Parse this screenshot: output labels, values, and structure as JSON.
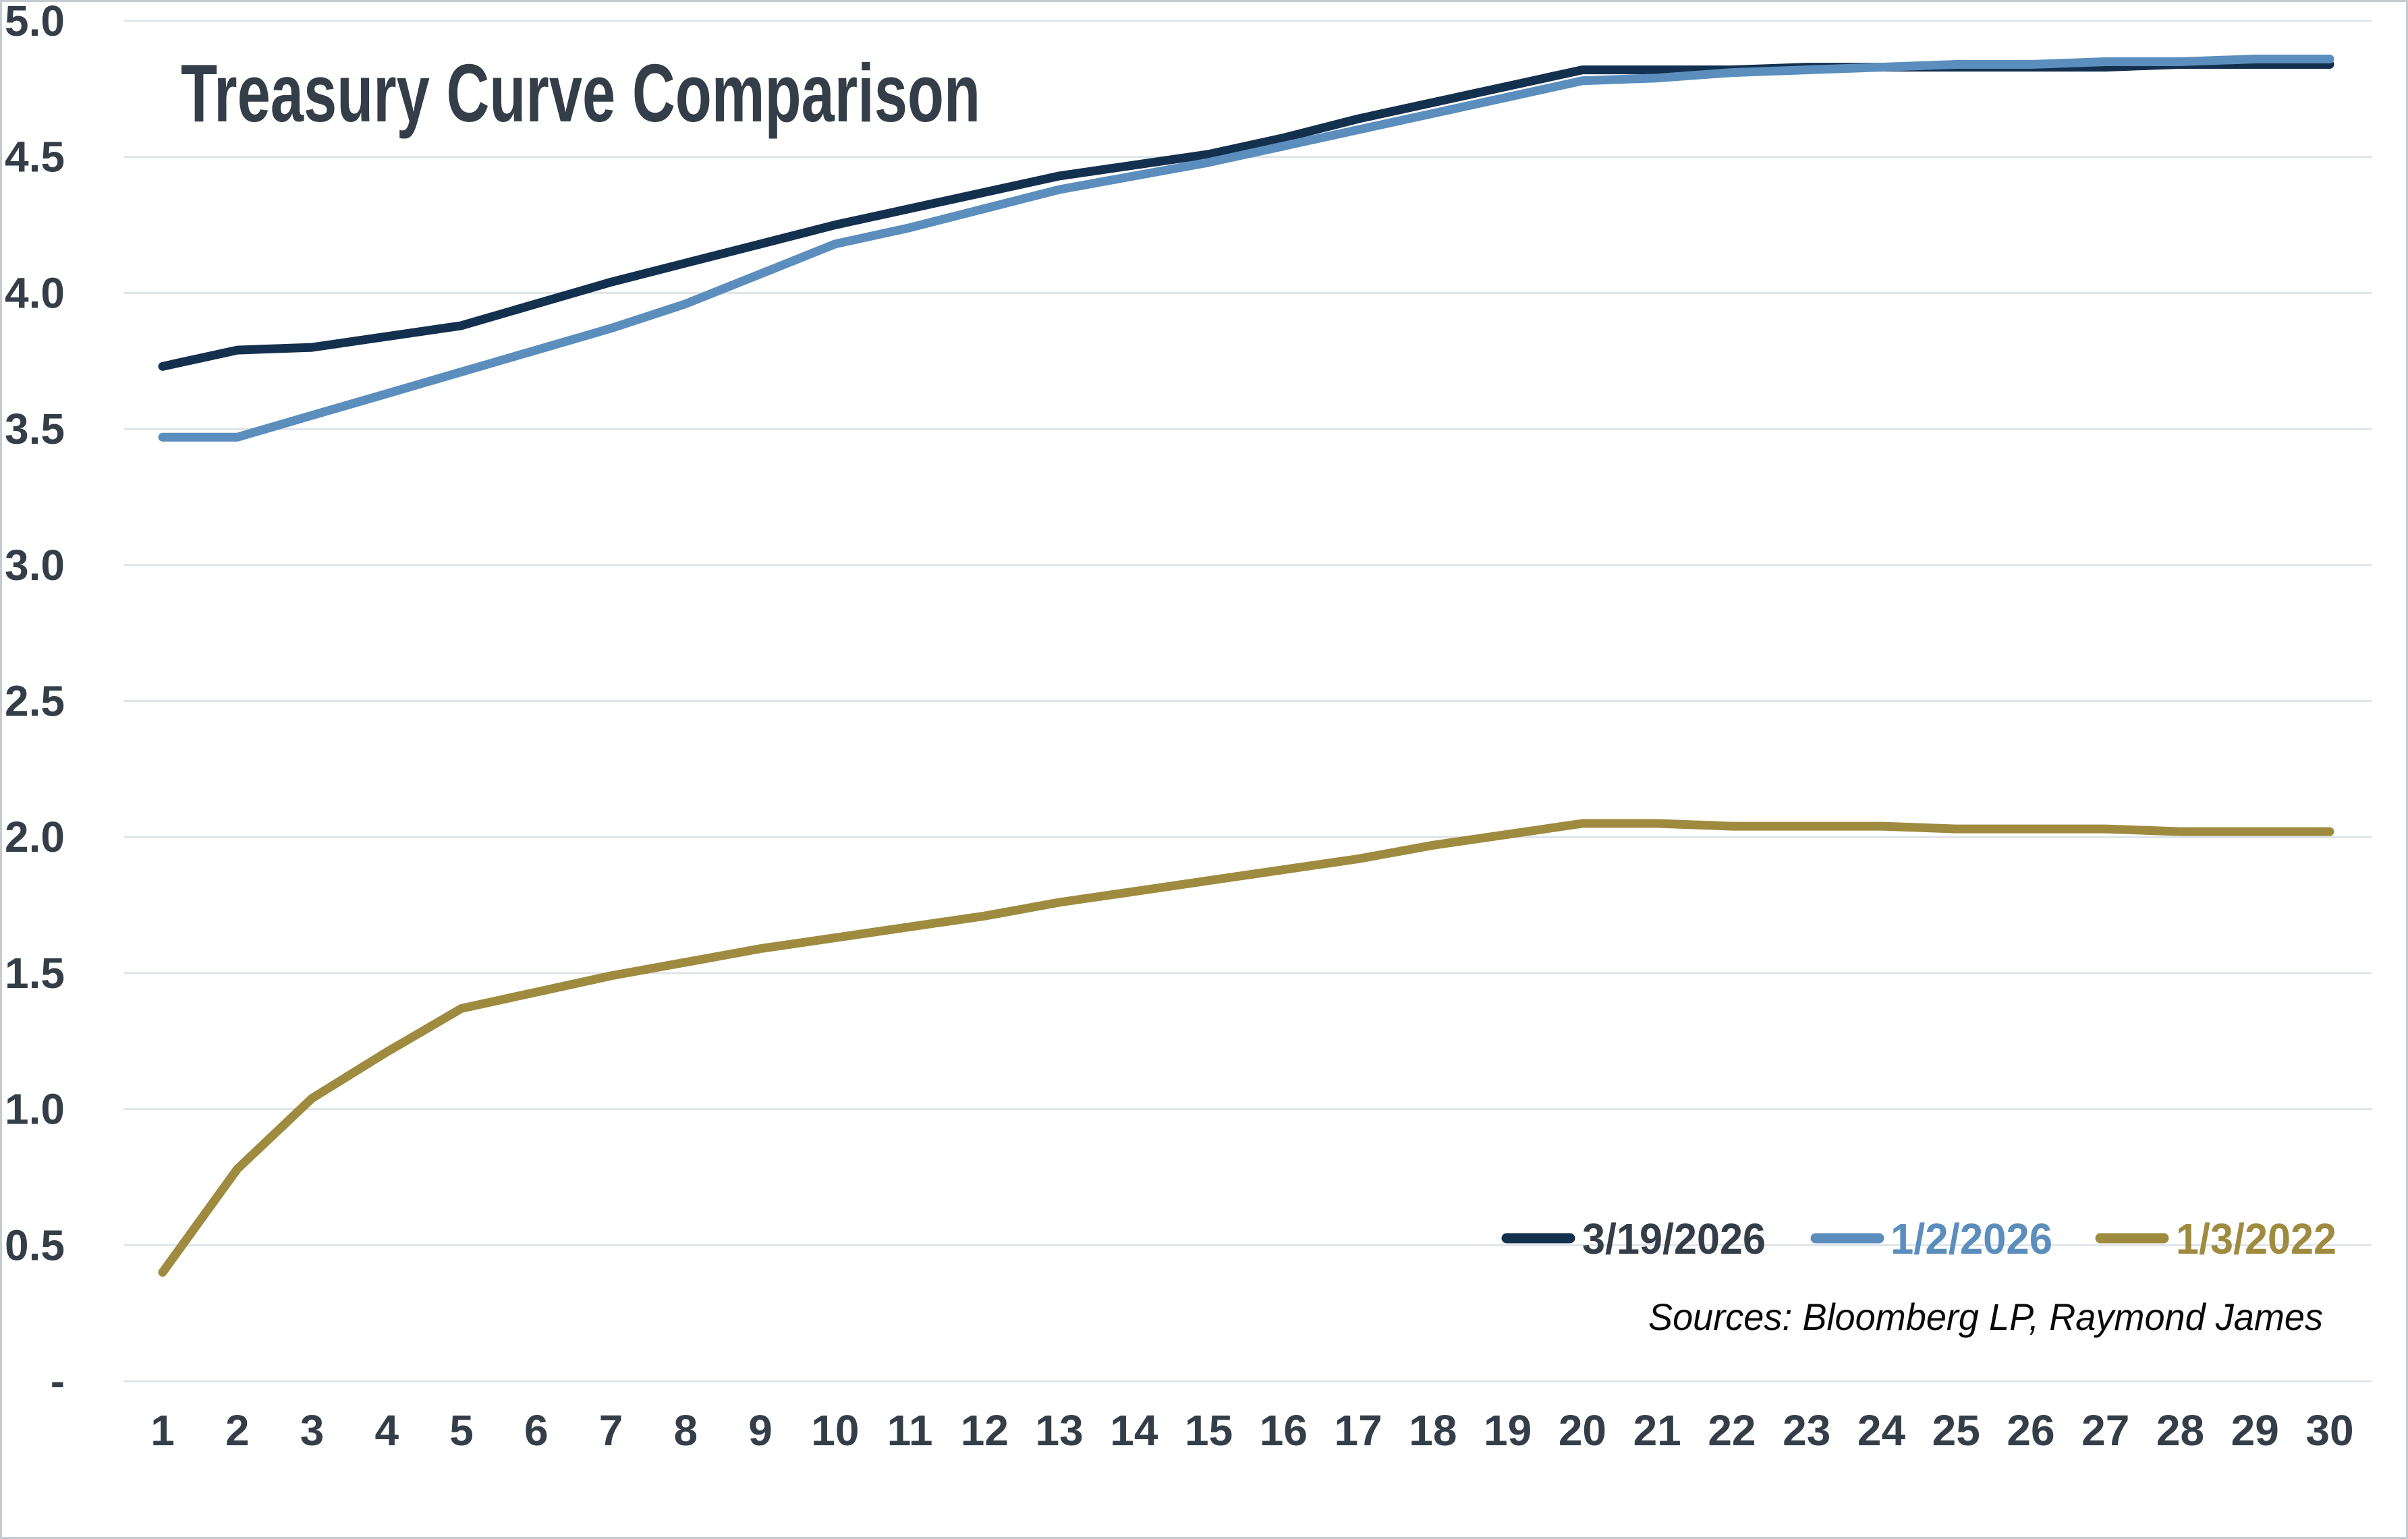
{
  "window": {
    "background": "#ffffff",
    "border_color": "#c6cbd1"
  },
  "chart_data": {
    "type": "line",
    "title": "Treasury Curve Comparison",
    "source_note": "Sources: Bloomberg LP, Raymond James",
    "title_color": "#343e48",
    "axis_text_color": "#343e48",
    "gridline_color": "#dee4e9",
    "source_note_color": "#0a0a0a",
    "grid": true,
    "legend_position": "inside-bottom-right",
    "xlabel": "",
    "ylabel": "",
    "x_categories": [
      1,
      2,
      3,
      4,
      5,
      6,
      7,
      8,
      9,
      10,
      11,
      12,
      13,
      14,
      15,
      16,
      17,
      18,
      19,
      20,
      21,
      22,
      23,
      24,
      25,
      26,
      27,
      28,
      29,
      30
    ],
    "y_axis": {
      "min": 0,
      "max": 5,
      "tick_interval": 0.5,
      "tick_labels_top_to_bottom": [
        "5.0",
        "4.5",
        "4.0",
        "3.5",
        "3.0",
        "2.5",
        "2.0",
        "1.5",
        "1.0",
        "0.5",
        "-"
      ]
    },
    "series": [
      {
        "name": "3/19/2026",
        "color": "#14304f",
        "label_color": "#343e48",
        "values": [
          3.73,
          3.79,
          3.8,
          3.84,
          3.88,
          3.96,
          4.04,
          4.11,
          4.18,
          4.25,
          4.31,
          4.37,
          4.43,
          4.47,
          4.51,
          4.57,
          4.64,
          4.7,
          4.76,
          4.82,
          4.82,
          4.82,
          4.83,
          4.83,
          4.83,
          4.83,
          4.83,
          4.84,
          4.84,
          4.84
        ]
      },
      {
        "name": "1/2/2026",
        "color": "#5b8ebd",
        "label_color": "#5b8ebd",
        "values": [
          3.47,
          3.47,
          3.55,
          3.63,
          3.71,
          3.79,
          3.87,
          3.96,
          4.07,
          4.18,
          4.24,
          4.31,
          4.38,
          4.43,
          4.48,
          4.54,
          4.6,
          4.66,
          4.72,
          4.78,
          4.79,
          4.81,
          4.82,
          4.83,
          4.84,
          4.84,
          4.85,
          4.85,
          4.86,
          4.86
        ]
      },
      {
        "name": "1/3/2022",
        "color": "#9f8b40",
        "label_color": "#9f8b40",
        "values": [
          0.4,
          0.78,
          1.04,
          1.21,
          1.37,
          1.43,
          1.49,
          1.54,
          1.59,
          1.63,
          1.67,
          1.71,
          1.76,
          1.8,
          1.84,
          1.88,
          1.92,
          1.97,
          2.01,
          2.05,
          2.05,
          2.04,
          2.04,
          2.04,
          2.03,
          2.03,
          2.03,
          2.02,
          2.02,
          2.02
        ]
      }
    ]
  }
}
